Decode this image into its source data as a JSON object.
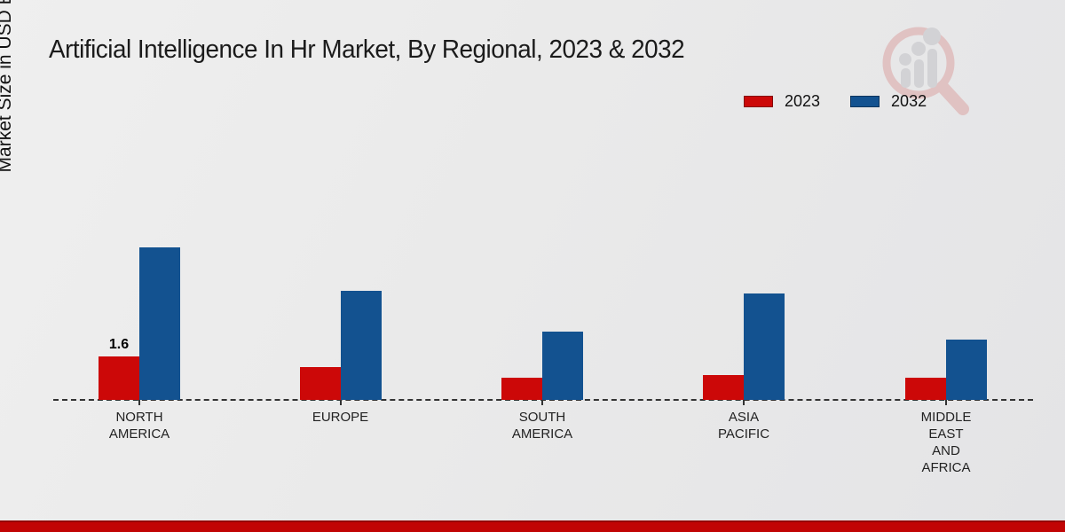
{
  "page": {
    "title": "Artificial Intelligence In Hr Market, By Regional, 2023 & 2032"
  },
  "y_axis": {
    "label": "Market Size in USD Billion"
  },
  "legend": {
    "position": "top-right",
    "items": [
      {
        "label": "2023",
        "color": "#cc0808"
      },
      {
        "label": "2032",
        "color": "#135290"
      }
    ]
  },
  "chart_data": {
    "type": "bar",
    "title": "Artificial Intelligence In Hr Market, By Regional, 2023 & 2032",
    "xlabel": "",
    "ylabel": "Market Size in USD Billion",
    "categories": [
      "NORTH AMERICA",
      "EUROPE",
      "SOUTH AMERICA",
      "ASIA PACIFIC",
      "MIDDLE EAST AND AFRICA"
    ],
    "category_lines": [
      [
        "NORTH",
        "AMERICA"
      ],
      [
        "EUROPE"
      ],
      [
        "SOUTH",
        "AMERICA"
      ],
      [
        "ASIA",
        "PACIFIC"
      ],
      [
        "MIDDLE",
        "EAST",
        "AND",
        "AFRICA"
      ]
    ],
    "series": [
      {
        "name": "2023",
        "color": "#cc0808",
        "values": [
          1.6,
          1.2,
          0.8,
          0.9,
          0.8
        ]
      },
      {
        "name": "2032",
        "color": "#135290",
        "values": [
          5.6,
          4.0,
          2.5,
          3.9,
          2.2
        ]
      }
    ],
    "value_labels": [
      {
        "series_index": 0,
        "category_index": 0,
        "text": "1.6"
      }
    ],
    "ylim": [
      0,
      6
    ],
    "grid": false,
    "axis_line_style": "dashed",
    "legend_position": "top-right"
  },
  "watermark": {
    "name": "market-research-magnifier-logo"
  },
  "footer": {
    "band_color": "#c10404"
  }
}
